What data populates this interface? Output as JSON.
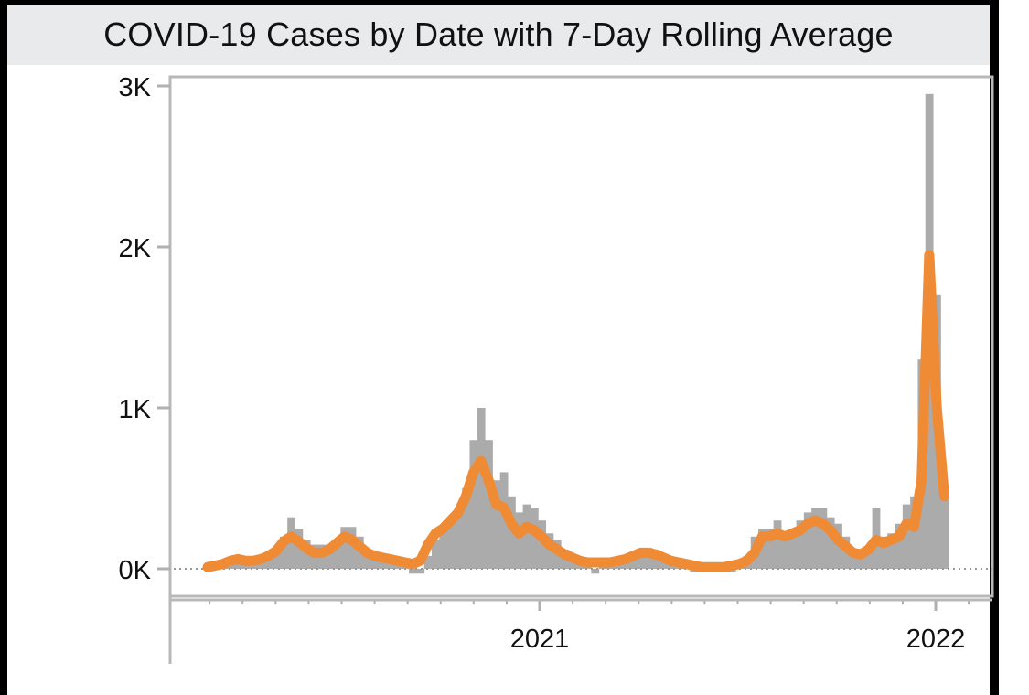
{
  "chart_data": {
    "type": "bar",
    "title": "COVID-19 Cases by Date with 7-Day Rolling Average",
    "xlabel": "",
    "ylabel": "",
    "x_start": "2020-03-01",
    "interval_days": 7,
    "ylim": [
      0,
      3000
    ],
    "y_ticks": [
      {
        "value": 0,
        "label": "0K"
      },
      {
        "value": 1000,
        "label": "1K"
      },
      {
        "value": 2000,
        "label": "2K"
      },
      {
        "value": 3000,
        "label": "3K"
      }
    ],
    "x_ticks": [
      {
        "value": "2021-01-01",
        "label": "2021"
      },
      {
        "value": "2022-01-01",
        "label": "2022"
      }
    ],
    "grid": false,
    "series": [
      {
        "name": "Cases",
        "type": "bar",
        "color": "#ababab",
        "values": [
          10,
          20,
          40,
          60,
          60,
          50,
          50,
          60,
          80,
          100,
          200,
          320,
          250,
          180,
          150,
          150,
          150,
          180,
          260,
          260,
          200,
          120,
          100,
          80,
          70,
          60,
          50,
          -30,
          -30,
          80,
          180,
          250,
          300,
          380,
          500,
          800,
          1000,
          800,
          550,
          600,
          450,
          350,
          400,
          380,
          300,
          220,
          180,
          120,
          80,
          60,
          50,
          -30,
          40,
          40,
          50,
          80,
          100,
          120,
          130,
          100,
          80,
          60,
          40,
          30,
          -20,
          -20,
          10,
          10,
          -10,
          -20,
          20,
          80,
          200,
          250,
          250,
          300,
          220,
          250,
          300,
          350,
          380,
          380,
          320,
          280,
          200,
          120,
          100,
          120,
          380,
          200,
          220,
          280,
          400,
          450,
          1300,
          2950,
          1700,
          500
        ]
      },
      {
        "name": "7-Day Rolling Average",
        "type": "line",
        "color": "#ef8a35",
        "values": [
          10,
          20,
          30,
          50,
          60,
          50,
          50,
          60,
          80,
          110,
          170,
          200,
          170,
          130,
          100,
          100,
          120,
          160,
          200,
          180,
          140,
          100,
          80,
          70,
          60,
          50,
          40,
          30,
          50,
          150,
          220,
          250,
          300,
          350,
          450,
          600,
          670,
          550,
          400,
          380,
          280,
          220,
          260,
          240,
          200,
          150,
          120,
          90,
          70,
          50,
          40,
          40,
          40,
          40,
          50,
          60,
          80,
          100,
          100,
          90,
          70,
          50,
          40,
          30,
          20,
          10,
          10,
          10,
          10,
          20,
          30,
          50,
          100,
          200,
          200,
          220,
          200,
          220,
          240,
          280,
          300,
          280,
          240,
          180,
          140,
          100,
          90,
          120,
          180,
          160,
          180,
          200,
          280,
          260,
          550,
          1950,
          1000,
          450
        ]
      }
    ]
  }
}
